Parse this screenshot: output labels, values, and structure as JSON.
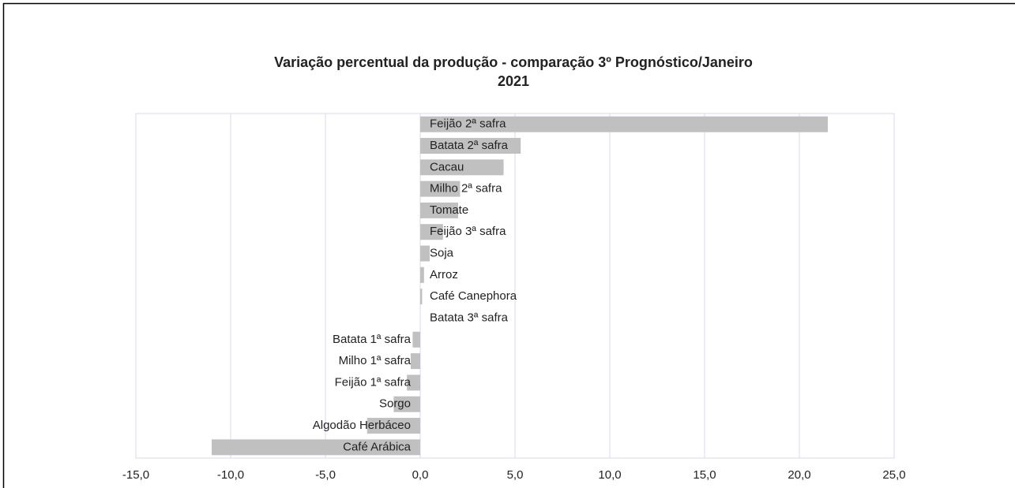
{
  "chart_data": {
    "type": "bar",
    "orientation": "horizontal",
    "title": [
      "Variação percentual da produção - comparação 3º Prognóstico/Janeiro",
      "2021"
    ],
    "categories": [
      "Feijão 2ª safra",
      "Batata 2ª safra",
      "Cacau",
      "Milho 2ª safra",
      "Tomate",
      "Feijão 3ª safra",
      "Soja",
      "Arroz",
      "Café Canephora",
      "Batata 3ª safra",
      "Batata 1ª safra",
      "Milho 1ª safra",
      "Feijão 1ª safra",
      "Sorgo",
      "Algodão Herbáceo",
      "Café Arábica"
    ],
    "values": [
      21.5,
      5.3,
      4.4,
      2.1,
      2.0,
      1.2,
      0.5,
      0.2,
      0.1,
      0.0,
      -0.4,
      -0.5,
      -0.7,
      -1.4,
      -2.8,
      -11.0
    ],
    "color": "#c0c0c0",
    "xlim": [
      -15,
      25
    ],
    "xticks": [
      {
        "value": -15,
        "label": "-15,0"
      },
      {
        "value": -10,
        "label": "-10,0"
      },
      {
        "value": -5,
        "label": "-5,0"
      },
      {
        "value": 0,
        "label": "0,0"
      },
      {
        "value": 5,
        "label": "5,0"
      },
      {
        "value": 10,
        "label": "10,0"
      },
      {
        "value": 15,
        "label": "15,0"
      },
      {
        "value": 20,
        "label": "20,0"
      },
      {
        "value": 25,
        "label": "25,0"
      }
    ],
    "grid": true
  }
}
